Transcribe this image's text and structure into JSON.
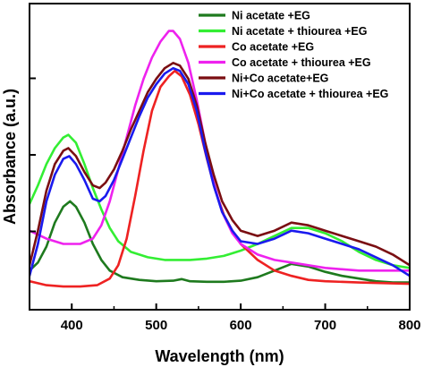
{
  "chart_data": {
    "type": "line",
    "title": "",
    "xlabel": "Wavelength (nm)",
    "ylabel": "Absorbance (a.u.)",
    "xlim": [
      350,
      800
    ],
    "ylim": [
      0,
      1
    ],
    "x_ticks": [
      400,
      500,
      600,
      700,
      800
    ],
    "x_tick_labels": [
      "400",
      "500",
      "600",
      "700",
      "800"
    ],
    "y_tick_labels_shown": false,
    "grid": false,
    "legend_position": "top-right",
    "series": [
      {
        "name": "Ni acetate +EG",
        "color": "#1e7a1e",
        "points": [
          [
            350,
            0.1
          ],
          [
            360,
            0.13
          ],
          [
            370,
            0.19
          ],
          [
            380,
            0.28
          ],
          [
            390,
            0.34
          ],
          [
            398,
            0.36
          ],
          [
            405,
            0.34
          ],
          [
            415,
            0.28
          ],
          [
            425,
            0.2
          ],
          [
            435,
            0.14
          ],
          [
            445,
            0.1
          ],
          [
            460,
            0.075
          ],
          [
            480,
            0.065
          ],
          [
            500,
            0.06
          ],
          [
            520,
            0.062
          ],
          [
            530,
            0.068
          ],
          [
            540,
            0.06
          ],
          [
            560,
            0.058
          ],
          [
            580,
            0.058
          ],
          [
            600,
            0.062
          ],
          [
            620,
            0.075
          ],
          [
            640,
            0.1
          ],
          [
            660,
            0.125
          ],
          [
            680,
            0.115
          ],
          [
            700,
            0.095
          ],
          [
            720,
            0.08
          ],
          [
            740,
            0.07
          ],
          [
            760,
            0.06
          ],
          [
            780,
            0.055
          ],
          [
            800,
            0.055
          ]
        ]
      },
      {
        "name": "Ni acetate + thiourea +EG",
        "color": "#33ee33",
        "points": [
          [
            350,
            0.35
          ],
          [
            360,
            0.42
          ],
          [
            370,
            0.5
          ],
          [
            380,
            0.56
          ],
          [
            390,
            0.6
          ],
          [
            396,
            0.61
          ],
          [
            405,
            0.58
          ],
          [
            415,
            0.5
          ],
          [
            425,
            0.41
          ],
          [
            435,
            0.33
          ],
          [
            445,
            0.26
          ],
          [
            455,
            0.21
          ],
          [
            470,
            0.17
          ],
          [
            490,
            0.15
          ],
          [
            510,
            0.14
          ],
          [
            540,
            0.14
          ],
          [
            560,
            0.145
          ],
          [
            580,
            0.155
          ],
          [
            600,
            0.175
          ],
          [
            620,
            0.2
          ],
          [
            640,
            0.23
          ],
          [
            660,
            0.26
          ],
          [
            680,
            0.26
          ],
          [
            700,
            0.24
          ],
          [
            720,
            0.21
          ],
          [
            740,
            0.17
          ],
          [
            760,
            0.14
          ],
          [
            780,
            0.12
          ],
          [
            800,
            0.11
          ]
        ]
      },
      {
        "name": "Co acetate +EG",
        "color": "#ee2222",
        "points": [
          [
            350,
            0.06
          ],
          [
            370,
            0.045
          ],
          [
            390,
            0.04
          ],
          [
            410,
            0.04
          ],
          [
            430,
            0.045
          ],
          [
            445,
            0.07
          ],
          [
            455,
            0.12
          ],
          [
            465,
            0.22
          ],
          [
            475,
            0.38
          ],
          [
            485,
            0.55
          ],
          [
            495,
            0.7
          ],
          [
            505,
            0.79
          ],
          [
            515,
            0.83
          ],
          [
            522,
            0.85
          ],
          [
            530,
            0.83
          ],
          [
            540,
            0.76
          ],
          [
            550,
            0.65
          ],
          [
            560,
            0.52
          ],
          [
            570,
            0.4
          ],
          [
            580,
            0.31
          ],
          [
            590,
            0.25
          ],
          [
            600,
            0.2
          ],
          [
            620,
            0.14
          ],
          [
            640,
            0.1
          ],
          [
            660,
            0.08
          ],
          [
            680,
            0.065
          ],
          [
            700,
            0.06
          ],
          [
            740,
            0.055
          ],
          [
            800,
            0.05
          ]
        ]
      },
      {
        "name": "Co acetate + thiourea +EG",
        "color": "#ee22ee",
        "points": [
          [
            350,
            0.25
          ],
          [
            370,
            0.22
          ],
          [
            390,
            0.2
          ],
          [
            410,
            0.2
          ],
          [
            425,
            0.22
          ],
          [
            435,
            0.27
          ],
          [
            445,
            0.36
          ],
          [
            455,
            0.48
          ],
          [
            465,
            0.6
          ],
          [
            475,
            0.72
          ],
          [
            485,
            0.82
          ],
          [
            495,
            0.9
          ],
          [
            505,
            0.96
          ],
          [
            515,
            1.0
          ],
          [
            520,
            1.0
          ],
          [
            528,
            0.97
          ],
          [
            538,
            0.88
          ],
          [
            548,
            0.74
          ],
          [
            558,
            0.58
          ],
          [
            568,
            0.43
          ],
          [
            578,
            0.32
          ],
          [
            590,
            0.24
          ],
          [
            600,
            0.2
          ],
          [
            620,
            0.16
          ],
          [
            640,
            0.14
          ],
          [
            660,
            0.13
          ],
          [
            680,
            0.12
          ],
          [
            700,
            0.11
          ],
          [
            740,
            0.1
          ],
          [
            800,
            0.1
          ]
        ]
      },
      {
        "name": "Ni+Co acetate+EG",
        "color": "#7a0e12",
        "points": [
          [
            350,
            0.12
          ],
          [
            360,
            0.25
          ],
          [
            370,
            0.4
          ],
          [
            380,
            0.5
          ],
          [
            390,
            0.55
          ],
          [
            396,
            0.56
          ],
          [
            405,
            0.53
          ],
          [
            415,
            0.47
          ],
          [
            425,
            0.42
          ],
          [
            433,
            0.41
          ],
          [
            440,
            0.43
          ],
          [
            450,
            0.48
          ],
          [
            460,
            0.55
          ],
          [
            470,
            0.63
          ],
          [
            480,
            0.7
          ],
          [
            490,
            0.77
          ],
          [
            500,
            0.82
          ],
          [
            510,
            0.86
          ],
          [
            520,
            0.88
          ],
          [
            528,
            0.87
          ],
          [
            538,
            0.82
          ],
          [
            548,
            0.72
          ],
          [
            558,
            0.58
          ],
          [
            568,
            0.46
          ],
          [
            578,
            0.36
          ],
          [
            590,
            0.29
          ],
          [
            600,
            0.25
          ],
          [
            620,
            0.23
          ],
          [
            640,
            0.25
          ],
          [
            660,
            0.28
          ],
          [
            680,
            0.27
          ],
          [
            700,
            0.25
          ],
          [
            720,
            0.23
          ],
          [
            740,
            0.21
          ],
          [
            760,
            0.19
          ],
          [
            780,
            0.16
          ],
          [
            800,
            0.12
          ]
        ]
      },
      {
        "name": "Ni+Co acetate + thiourea +EG",
        "color": "#1a1aee",
        "points": [
          [
            350,
            0.08
          ],
          [
            360,
            0.2
          ],
          [
            370,
            0.36
          ],
          [
            380,
            0.46
          ],
          [
            390,
            0.52
          ],
          [
            397,
            0.53
          ],
          [
            405,
            0.5
          ],
          [
            415,
            0.44
          ],
          [
            425,
            0.37
          ],
          [
            433,
            0.36
          ],
          [
            440,
            0.38
          ],
          [
            450,
            0.44
          ],
          [
            460,
            0.52
          ],
          [
            470,
            0.6
          ],
          [
            480,
            0.68
          ],
          [
            490,
            0.75
          ],
          [
            500,
            0.8
          ],
          [
            510,
            0.84
          ],
          [
            520,
            0.86
          ],
          [
            528,
            0.85
          ],
          [
            538,
            0.8
          ],
          [
            548,
            0.7
          ],
          [
            558,
            0.55
          ],
          [
            568,
            0.42
          ],
          [
            578,
            0.32
          ],
          [
            590,
            0.25
          ],
          [
            600,
            0.21
          ],
          [
            620,
            0.2
          ],
          [
            640,
            0.22
          ],
          [
            660,
            0.25
          ],
          [
            680,
            0.24
          ],
          [
            700,
            0.22
          ],
          [
            720,
            0.2
          ],
          [
            740,
            0.18
          ],
          [
            760,
            0.15
          ],
          [
            780,
            0.12
          ],
          [
            800,
            0.08
          ]
        ]
      }
    ]
  }
}
